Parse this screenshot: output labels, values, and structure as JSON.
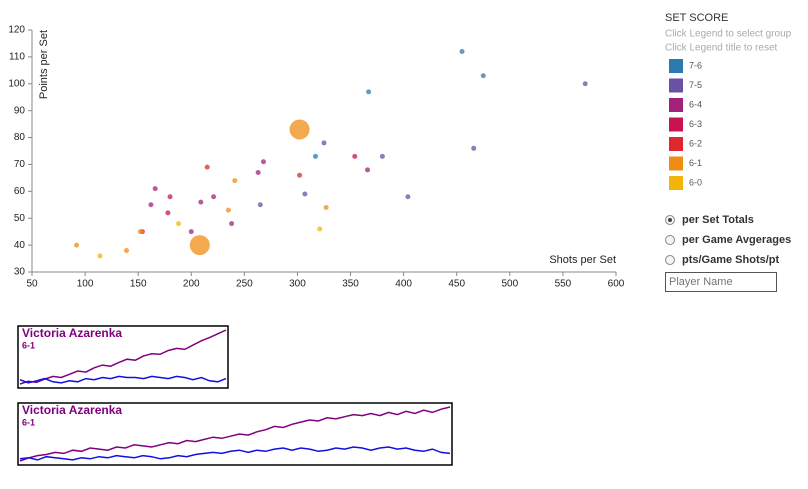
{
  "chart_data": {
    "type": "scatter",
    "x_label": "Shots per Set",
    "y_label": "Points per Set",
    "xlim": [
      50,
      600
    ],
    "xticks": [
      50,
      100,
      150,
      200,
      250,
      300,
      350,
      400,
      450,
      500,
      550,
      600
    ],
    "ylim": [
      30,
      120
    ],
    "yticks": [
      30,
      40,
      50,
      60,
      70,
      80,
      90,
      100,
      110,
      120
    ],
    "legend_title": "SET SCORE",
    "legend_hints": [
      "Click Legend to select group",
      "Click Legend title to reset"
    ],
    "series": [
      {
        "name": "7-6",
        "color": "#2a7ab0",
        "x": [
          455,
          475,
          367,
          317
        ],
        "values": [
          112,
          103,
          97,
          73
        ],
        "sizes": [
          1,
          1,
          1,
          1
        ]
      },
      {
        "name": "7-5",
        "color": "#6a51a3",
        "x": [
          571,
          466,
          380,
          404,
          307,
          265,
          325
        ],
        "values": [
          100,
          76,
          73,
          58,
          59,
          55,
          78
        ],
        "sizes": [
          1,
          1,
          1,
          1,
          1,
          1,
          1
        ]
      },
      {
        "name": "6-4",
        "color": "#a3217c",
        "x": [
          366,
          268,
          263,
          238,
          221,
          209,
          200,
          166,
          162
        ],
        "values": [
          68,
          71,
          67,
          48,
          58,
          56,
          45,
          61,
          55
        ],
        "sizes": [
          1,
          1,
          1,
          1,
          1,
          1,
          1,
          1,
          1
        ]
      },
      {
        "name": "6-3",
        "color": "#c9134f",
        "x": [
          354,
          180,
          178
        ],
        "values": [
          73,
          58,
          52
        ],
        "sizes": [
          1,
          1,
          1
        ]
      },
      {
        "name": "6-2",
        "color": "#e0292e",
        "x": [
          302,
          215,
          154
        ],
        "values": [
          66,
          69,
          45
        ],
        "sizes": [
          1,
          1,
          1
        ]
      },
      {
        "name": "6-1",
        "color": "#ef8c12",
        "x": [
          302,
          208,
          327,
          241,
          235,
          152,
          139,
          92
        ],
        "values": [
          83,
          40,
          54,
          64,
          53,
          45,
          38,
          40
        ],
        "sizes": [
          16,
          16,
          1,
          1,
          1,
          1,
          1,
          1
        ]
      },
      {
        "name": "6-0",
        "color": "#f2b40a",
        "x": [
          321,
          188,
          114
        ],
        "values": [
          46,
          48,
          36
        ],
        "sizes": [
          1,
          1,
          1
        ]
      }
    ]
  },
  "controls": {
    "options": [
      "per Set Totals",
      "per Game Avgerages",
      "pts/Game Shots/pt"
    ],
    "selected": 0,
    "input_placeholder": "Player Name"
  },
  "panels": [
    {
      "title": "Victoria Azarenka",
      "subtitle": "6-1",
      "series": [
        {
          "color": "#800080",
          "values": [
            0,
            5,
            3,
            9,
            14,
            12,
            18,
            24,
            22,
            30,
            35,
            33,
            40,
            46,
            44,
            52,
            56,
            55,
            62,
            66,
            64,
            72,
            80,
            86,
            93,
            100
          ]
        },
        {
          "color": "#1010e0",
          "values": [
            8,
            2,
            6,
            10,
            4,
            2,
            6,
            4,
            10,
            8,
            12,
            10,
            14,
            12,
            12,
            10,
            14,
            12,
            10,
            14,
            12,
            8,
            12,
            6,
            4,
            10
          ]
        }
      ]
    },
    {
      "title": "Victoria Azarenka",
      "subtitle": "6-1",
      "series": [
        {
          "color": "#800080",
          "values": [
            0,
            6,
            10,
            12,
            16,
            14,
            20,
            18,
            24,
            22,
            20,
            26,
            24,
            30,
            28,
            26,
            30,
            34,
            32,
            38,
            36,
            40,
            44,
            42,
            46,
            50,
            48,
            54,
            58,
            64,
            62,
            68,
            72,
            76,
            74,
            80,
            78,
            82,
            86,
            84,
            88,
            84,
            90,
            86,
            92,
            88,
            94,
            90,
            96,
            100
          ]
        },
        {
          "color": "#1010e0",
          "values": [
            4,
            6,
            2,
            8,
            6,
            4,
            2,
            6,
            4,
            8,
            6,
            10,
            8,
            6,
            10,
            8,
            4,
            6,
            10,
            8,
            12,
            14,
            16,
            14,
            18,
            20,
            16,
            20,
            18,
            22,
            24,
            20,
            24,
            22,
            18,
            20,
            24,
            22,
            26,
            24,
            20,
            24,
            26,
            22,
            24,
            20,
            18,
            22,
            16,
            14
          ]
        }
      ]
    }
  ]
}
